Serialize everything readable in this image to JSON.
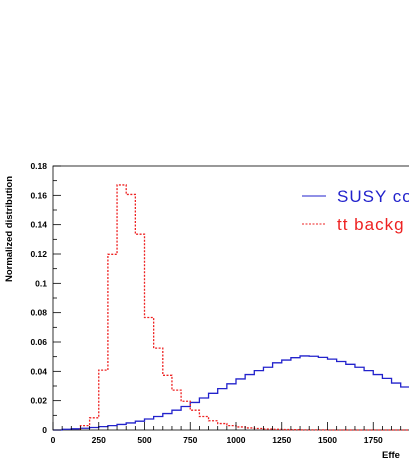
{
  "chart_data": {
    "type": "step",
    "title": "",
    "xlabel": "Effe",
    "ylabel": "Normalized distribution",
    "xlim": [
      0,
      1950
    ],
    "ylim": [
      0,
      0.18
    ],
    "x_ticks": [
      0,
      250,
      500,
      750,
      1000,
      1250,
      1500,
      1750,
      2000
    ],
    "x_tick_labels": [
      "0",
      "250",
      "500",
      "750",
      "1000",
      "1250",
      "1500",
      "1750",
      ""
    ],
    "y_ticks": [
      0,
      0.02,
      0.04,
      0.06,
      0.08,
      0.1,
      0.12,
      0.14,
      0.16,
      0.18
    ],
    "y_tick_labels": [
      "0",
      "0.02",
      "0.04",
      "0.06",
      "0.08",
      "0.1",
      "0.12",
      "0.14",
      "0.16",
      "0.18"
    ],
    "grid": false,
    "legend_position": "top-right",
    "bin_width": 50,
    "series": [
      {
        "name": "SUSY co",
        "color": "#2222cc",
        "style": "solid",
        "x_start": 0,
        "values": [
          0.0,
          0.0005,
          0.0008,
          0.0012,
          0.0017,
          0.0023,
          0.003,
          0.0038,
          0.0048,
          0.006,
          0.0075,
          0.0092,
          0.0112,
          0.0135,
          0.016,
          0.0188,
          0.0218,
          0.025,
          0.0282,
          0.0315,
          0.0348,
          0.0378,
          0.0405,
          0.0428,
          0.0458,
          0.0477,
          0.0493,
          0.0505,
          0.0503,
          0.0495,
          0.0483,
          0.0467,
          0.0448,
          0.0428,
          0.0405,
          0.0378,
          0.0352,
          0.032,
          0.0293,
          0.0258
        ]
      },
      {
        "name": "tt backg",
        "color": "#ee2222",
        "style": "dashed",
        "x_start": 150,
        "values": [
          0.003,
          0.0083,
          0.0408,
          0.1198,
          0.1671,
          0.1606,
          0.1335,
          0.0767,
          0.0558,
          0.0373,
          0.0272,
          0.0196,
          0.0135,
          0.0092,
          0.0063,
          0.0044,
          0.003,
          0.0021,
          0.0014,
          0.001,
          0.0007,
          0.0005,
          0.0003,
          0.0002,
          0.0001,
          0.0001,
          0.0001,
          0.0,
          0.0,
          0.0,
          0.0,
          0.0,
          0.0,
          0.0,
          0.0,
          0.0,
          0.0,
          0.0
        ]
      }
    ]
  }
}
